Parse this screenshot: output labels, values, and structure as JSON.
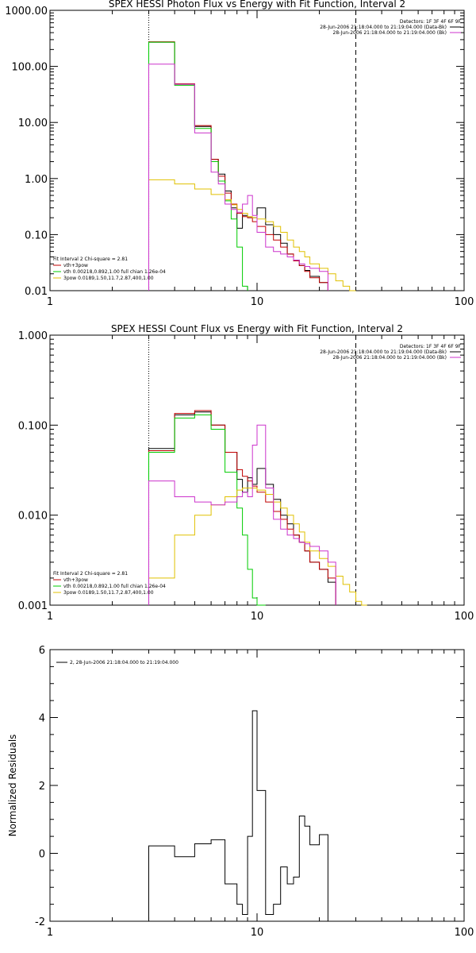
{
  "colors": {
    "data": "#000000",
    "total": "#c00000",
    "vth": "#00cc00",
    "bpow": "#e0c000",
    "background": "#cc33cc",
    "page_bg": "#ffffff"
  },
  "chart_data": [
    {
      "type": "line",
      "title": "SPEX HESSI Photon Flux vs Energy with Fit Function, Interval 2",
      "xscale": "log",
      "yscale": "log",
      "xlim": [
        1,
        100
      ],
      "ylim": [
        0.01,
        1000
      ],
      "xticks": [
        "1",
        "10",
        "100"
      ],
      "yticks": [
        "0.01",
        "0.10",
        "1.00",
        "10.00",
        "100.00",
        "1000.00"
      ],
      "xlabel": "",
      "ylabel": "",
      "vlines": [
        {
          "x": 3,
          "style": "dotted"
        },
        {
          "x": 30,
          "style": "dashed"
        }
      ],
      "detectors_label": "Detectors: 1F 3F 4F 6F 9F",
      "legend_top_right": [
        {
          "text": "28-Jun-2006 21:18:04.000 to 21:19:04.000 (Data-Bk)",
          "color_key": "data"
        },
        {
          "text": "28-Jun-2006 21:18:04.000 to 21:19:04.000 (Bk)",
          "color_key": "background"
        }
      ],
      "legend_bottom_left": [
        {
          "text": "Fit Interval 2   Chi-square = 2.81",
          "color_key": null
        },
        {
          "text": "vth+3pow",
          "color_key": "total"
        },
        {
          "text": "vth 0.00218,0.892,1.00  full chian 1.26e-04",
          "color_key": "vth"
        },
        {
          "text": "3pow 0.0189,1.50,11.7,2.87,400,1.00",
          "color_key": "bpow"
        }
      ],
      "edges": [
        3.0,
        3.5,
        4.0,
        4.5,
        5.0,
        5.5,
        6.0,
        6.5,
        7.0,
        7.5,
        8.0,
        8.5,
        9.0,
        9.5,
        10.0,
        11.0,
        12.0,
        13.0,
        14.0,
        15.0,
        16.0,
        17.0,
        18.0,
        20.0,
        22.0,
        24.0,
        26.0,
        28.0,
        30.0,
        32.0,
        34.0
      ],
      "series": [
        {
          "name": "Data-Bk",
          "color_key": "data",
          "values": [
            270,
            270,
            48,
            48,
            8.5,
            8.5,
            2.2,
            1.2,
            0.6,
            0.3,
            0.13,
            0.22,
            0.2,
            0.2,
            0.3,
            0.15,
            0.1,
            0.07,
            0.045,
            0.035,
            0.028,
            0.023,
            0.018,
            0.014
          ]
        },
        {
          "name": "vth+3pow",
          "color_key": "total",
          "values": [
            275,
            275,
            49,
            49,
            8.8,
            8.8,
            2.2,
            1.1,
            0.55,
            0.35,
            0.24,
            0.21,
            0.2,
            0.17,
            0.14,
            0.1,
            0.08,
            0.06,
            0.045,
            0.034,
            0.028,
            0.022,
            0.017,
            0.014
          ]
        },
        {
          "name": "vth",
          "color_key": "vth",
          "values": [
            270,
            270,
            46,
            46,
            7.8,
            7.8,
            2.0,
            0.9,
            0.4,
            0.19,
            0.06,
            0.012
          ]
        },
        {
          "name": "3pow",
          "color_key": "bpow",
          "values": [
            0.95,
            0.95,
            0.8,
            0.8,
            0.65,
            0.65,
            0.52,
            0.52,
            0.42,
            0.34,
            0.28,
            0.24,
            0.21,
            0.2,
            0.19,
            0.17,
            0.14,
            0.11,
            0.08,
            0.06,
            0.05,
            0.04,
            0.03,
            0.025,
            0.02,
            0.015,
            0.012,
            0.01
          ]
        },
        {
          "name": "Bk",
          "color_key": "background",
          "values": [
            110,
            110,
            48,
            48,
            6.5,
            6.5,
            1.3,
            0.8,
            0.35,
            0.28,
            0.25,
            0.35,
            0.5,
            0.22,
            0.11,
            0.06,
            0.05,
            0.045,
            0.04,
            0.035,
            0.03,
            0.027,
            0.025,
            0.022
          ]
        }
      ]
    },
    {
      "type": "line",
      "title": "SPEX HESSI Count Flux vs Energy with Fit Function, Interval 2",
      "xscale": "log",
      "yscale": "log",
      "xlim": [
        1,
        100
      ],
      "ylim": [
        0.001,
        1
      ],
      "xticks": [
        "1",
        "10",
        "100"
      ],
      "yticks": [
        "0.001",
        "0.010",
        "0.100",
        "1.000"
      ],
      "xlabel": "",
      "ylabel": "",
      "vlines": [
        {
          "x": 3,
          "style": "dotted"
        },
        {
          "x": 30,
          "style": "dashed"
        }
      ],
      "detectors_label": "Detectors: 1F 3F 4F 6F 9F",
      "legend_top_right": [
        {
          "text": "28-Jun-2006 21:18:04.000 to 21:19:04.000 (Data-Bk)",
          "color_key": "data"
        },
        {
          "text": "28-Jun-2006 21:18:04.000 to 21:19:04.000 (Bk)",
          "color_key": "background"
        }
      ],
      "legend_bottom_left": [
        {
          "text": "Fit Interval 2   Chi-square = 2.81",
          "color_key": null
        },
        {
          "text": "vth+3pow",
          "color_key": "total"
        },
        {
          "text": "vth 0.00218,0.892,1.00  full chian 1.26e-04",
          "color_key": "vth"
        },
        {
          "text": "3pow 0.0189,1.50,11.7,2.87,400,1.00",
          "color_key": "bpow"
        }
      ],
      "edges": [
        3.0,
        3.5,
        4.0,
        4.5,
        5.0,
        5.5,
        6.0,
        6.5,
        7.0,
        7.5,
        8.0,
        8.5,
        9.0,
        9.5,
        10.0,
        11.0,
        12.0,
        13.0,
        14.0,
        15.0,
        16.0,
        17.0,
        18.0,
        20.0,
        22.0,
        24.0,
        26.0,
        28.0,
        30.0,
        32.0,
        34.0
      ],
      "series": [
        {
          "name": "Data-Bk",
          "color_key": "data",
          "values": [
            0.055,
            0.055,
            0.13,
            0.13,
            0.14,
            0.14,
            0.1,
            0.1,
            0.05,
            0.05,
            0.025,
            0.018,
            0.026,
            0.022,
            0.033,
            0.022,
            0.015,
            0.01,
            0.008,
            0.006,
            0.005,
            0.004,
            0.003,
            0.0025,
            0.0018
          ]
        },
        {
          "name": "vth+3pow",
          "color_key": "total",
          "values": [
            0.052,
            0.052,
            0.135,
            0.135,
            0.145,
            0.145,
            0.1,
            0.1,
            0.05,
            0.05,
            0.032,
            0.027,
            0.024,
            0.021,
            0.018,
            0.014,
            0.011,
            0.009,
            0.007,
            0.006,
            0.005,
            0.004,
            0.003,
            0.0025,
            0.002
          ]
        },
        {
          "name": "vth",
          "color_key": "vth",
          "values": [
            0.05,
            0.05,
            0.12,
            0.12,
            0.13,
            0.13,
            0.09,
            0.09,
            0.03,
            0.03,
            0.012,
            0.006,
            0.0025,
            0.0012,
            0.0008
          ]
        },
        {
          "name": "3pow",
          "color_key": "bpow",
          "values": [
            0.002,
            0.002,
            0.006,
            0.006,
            0.01,
            0.01,
            0.013,
            0.013,
            0.016,
            0.016,
            0.019,
            0.02,
            0.02,
            0.02,
            0.019,
            0.017,
            0.014,
            0.012,
            0.01,
            0.008,
            0.0065,
            0.005,
            0.004,
            0.0033,
            0.0027,
            0.0021,
            0.0017,
            0.0014,
            0.0011,
            0.0009
          ]
        },
        {
          "name": "Bk",
          "color_key": "background",
          "values": [
            0.024,
            0.024,
            0.016,
            0.016,
            0.014,
            0.014,
            0.013,
            0.013,
            0.014,
            0.014,
            0.016,
            0.018,
            0.016,
            0.06,
            0.1,
            0.02,
            0.009,
            0.007,
            0.006,
            0.0055,
            0.005,
            0.0048,
            0.0045,
            0.004,
            0.003
          ]
        }
      ]
    },
    {
      "type": "line",
      "title": "",
      "xscale": "log",
      "yscale": "linear",
      "xlim": [
        1,
        100
      ],
      "ylim": [
        -2,
        6
      ],
      "xticks": [
        "1",
        "10",
        "100"
      ],
      "yticks": [
        "-2",
        "0",
        "2",
        "4",
        "6"
      ],
      "xlabel": "",
      "ylabel": "Normalized Residuals",
      "legend_top_left": {
        "text": "2, 28-Jun-2006 21:18:04.000 to 21:19:04.000",
        "color_key": "data"
      },
      "edges": [
        3.0,
        3.5,
        4.0,
        4.5,
        5.0,
        5.5,
        6.0,
        6.5,
        7.0,
        7.5,
        8.0,
        8.5,
        9.0,
        9.5,
        10.0,
        11.0,
        12.0,
        13.0,
        14.0,
        15.0,
        16.0,
        17.0,
        18.0,
        20.0,
        22.0,
        24.0,
        26.0,
        28.0,
        30.0
      ],
      "series": [
        {
          "name": "",
          "color_key": "data",
          "values": [
            0.22,
            0.22,
            -0.1,
            -0.1,
            0.28,
            0.28,
            0.4,
            0.4,
            -0.9,
            -0.9,
            -1.5,
            -1.8,
            0.5,
            4.2,
            1.85,
            -1.8,
            -1.5,
            -0.4,
            -0.9,
            -0.7,
            1.1,
            0.8,
            0.25,
            0.55
          ]
        }
      ]
    }
  ]
}
